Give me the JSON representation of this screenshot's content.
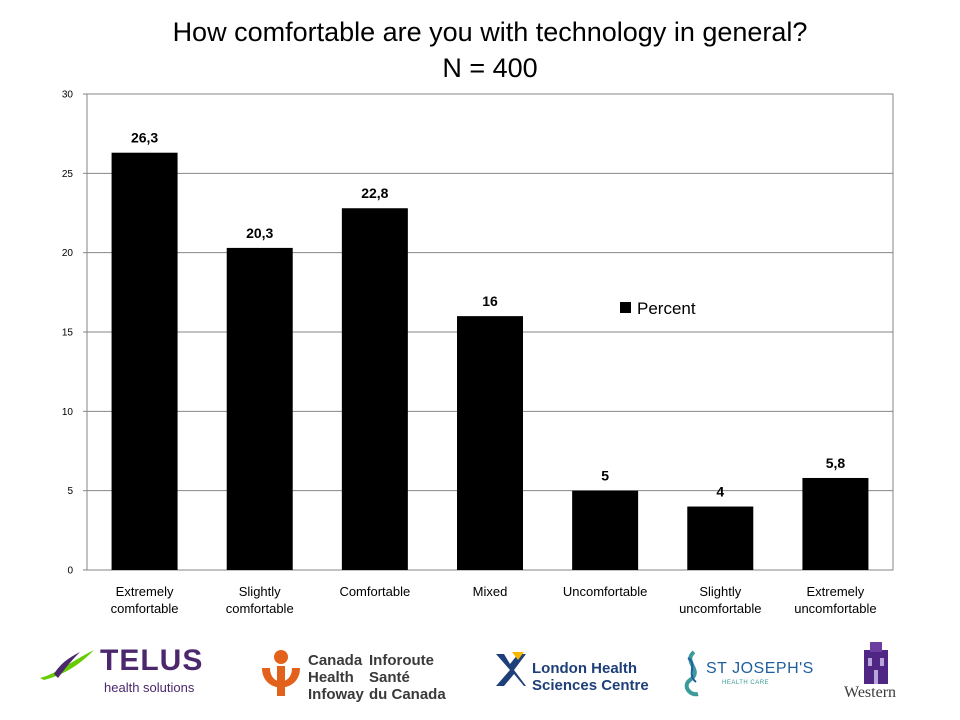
{
  "chart_data": {
    "type": "bar",
    "title": "How comfortable are you with technology in general?",
    "subtitle": "N = 400",
    "categories": [
      [
        "Extremely",
        "comfortable"
      ],
      [
        "Slightly",
        "comfortable"
      ],
      [
        "Comfortable"
      ],
      [
        "Mixed"
      ],
      [
        "Uncomfortable"
      ],
      [
        "Slightly",
        "uncomfortable"
      ],
      [
        "Extremely",
        "uncomfortable"
      ]
    ],
    "series": [
      {
        "name": "Percent",
        "values": [
          26.3,
          20.3,
          22.8,
          16,
          5,
          4,
          5.8
        ],
        "labels": [
          "26,3",
          "20,3",
          "22,8",
          "16",
          "5",
          "4",
          "5,8"
        ],
        "color": "#000000"
      }
    ],
    "ylim": [
      0,
      30
    ],
    "yticks": [
      0,
      5,
      10,
      15,
      20,
      25,
      30
    ],
    "grid": true,
    "legend_position": "right",
    "xlabel": "",
    "ylabel": ""
  },
  "logos": {
    "telus": {
      "name": "TELUS",
      "sub": "health solutions"
    },
    "infoway": {
      "en": [
        "Canada",
        "Health",
        "Infoway"
      ],
      "fr": [
        "Inforoute",
        "Santé",
        "du Canada"
      ]
    },
    "lhsc": {
      "lines": [
        "London Health",
        "Sciences Centre"
      ]
    },
    "stjosephs": {
      "name": "ST JOSEPH'S",
      "sub": "HEALTH CARE"
    },
    "western": {
      "name": "Western"
    }
  },
  "colors": {
    "telus_purple": "#4b286d",
    "telus_green": "#66cc00",
    "infoway_orange": "#e2621b",
    "lhsc_blue": "#1f3f7a",
    "lhsc_yellow": "#f5b700",
    "western_purple": "#4f2683"
  }
}
